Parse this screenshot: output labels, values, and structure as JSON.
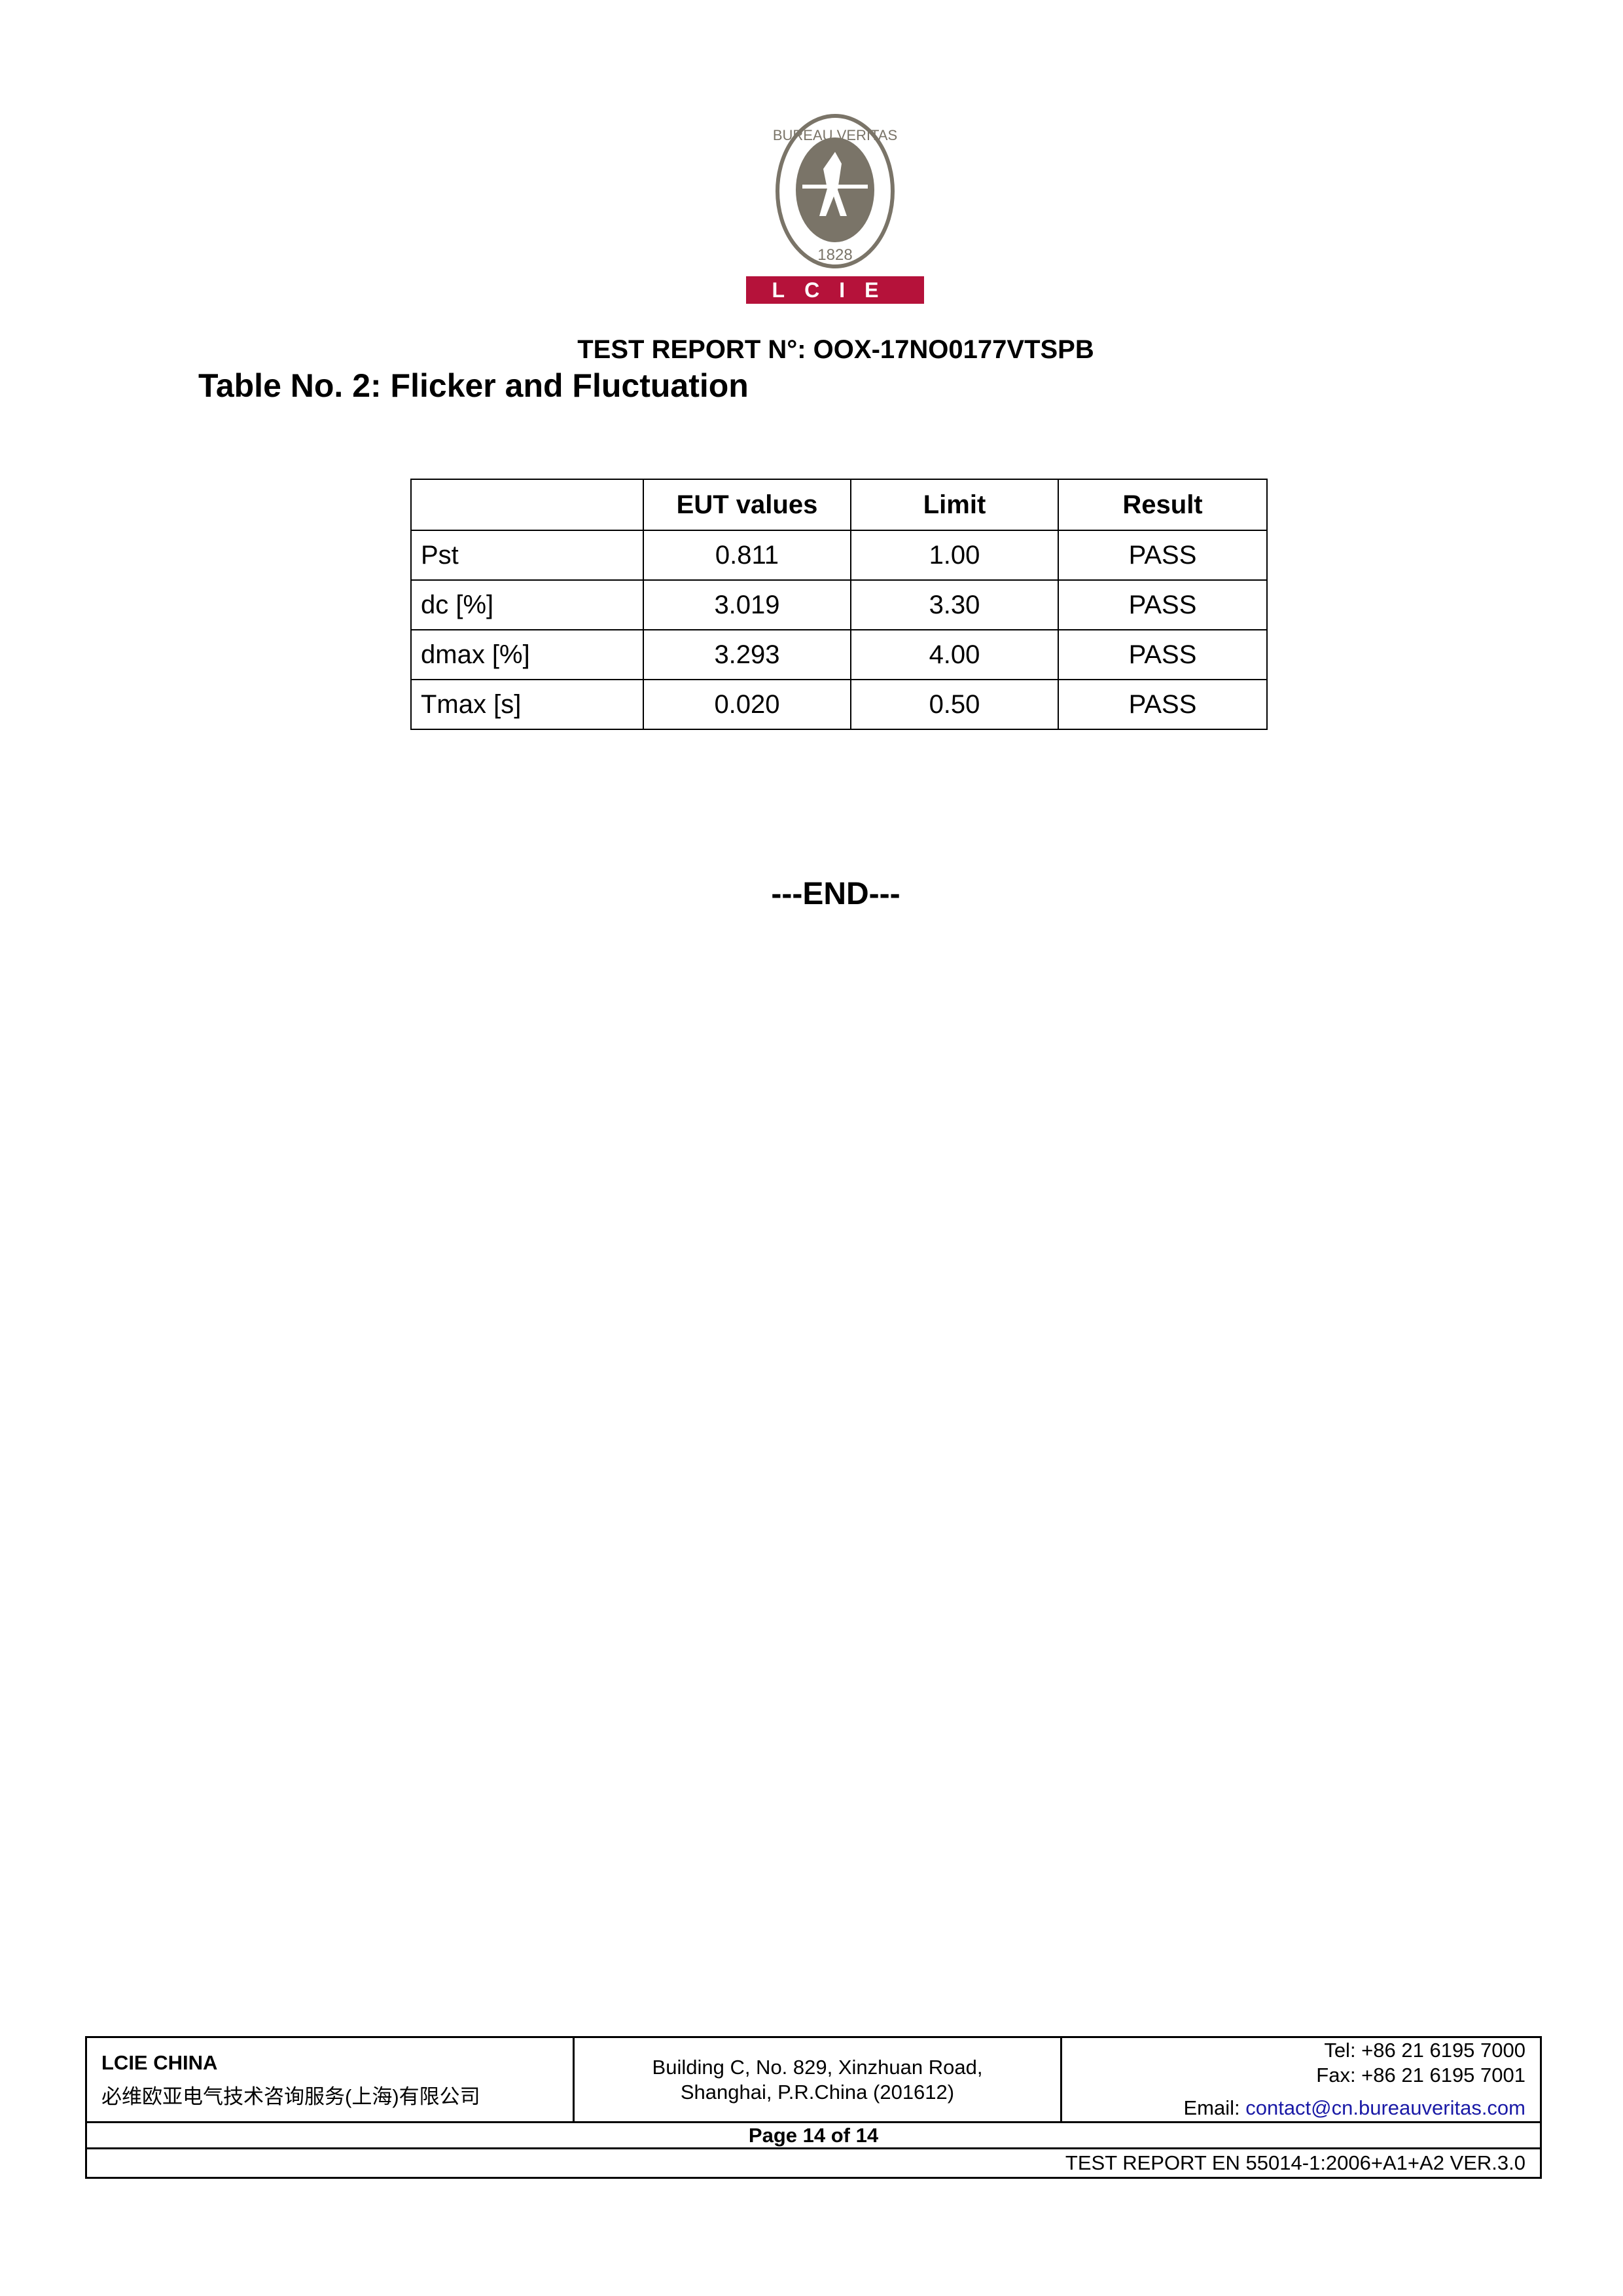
{
  "logo": {
    "brand_text": "BUREAU VERITAS",
    "year": "1828",
    "band_text": "L C I E",
    "colors": {
      "seal": "#7a7468",
      "band": "#b5123a"
    }
  },
  "header": {
    "report_number": "TEST REPORT N°: OOX-17NO0177VTSPB"
  },
  "table_title": "Table No. 2: Flicker and Fluctuation",
  "table": {
    "headers": [
      "",
      "EUT values",
      "Limit",
      "Result"
    ],
    "rows": [
      [
        "Pst",
        "0.811",
        "1.00",
        "PASS"
      ],
      [
        "dc [%]",
        "3.019",
        "3.30",
        "PASS"
      ],
      [
        "dmax [%]",
        "3.293",
        "4.00",
        "PASS"
      ],
      [
        "Tmax [s]",
        "0.020",
        "0.50",
        "PASS"
      ]
    ]
  },
  "end_marker": "---END---",
  "footer": {
    "company": "LCIE CHINA",
    "company_cn": "必维欧亚电气技术咨询服务(上海)有限公司",
    "address_line1": "Building C, No. 829, Xinzhuan Road,",
    "address_line2": "Shanghai, P.R.China (201612)",
    "tel": "Tel: +86 21 6195 7000",
    "fax": "Fax: +86 21 6195 7001",
    "email_label": "Email: ",
    "email": "contact@cn.bureauveritas.com",
    "page": "Page 14 of 14",
    "standard": "TEST REPORT EN 55014-1:2006+A1+A2 VER.3.0"
  }
}
